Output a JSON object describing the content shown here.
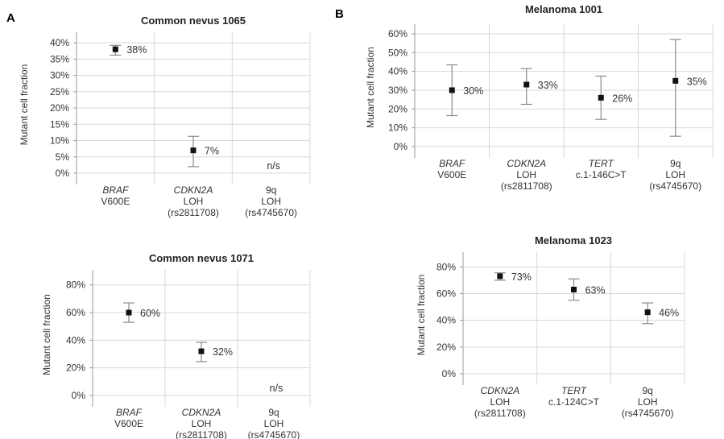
{
  "panel_labels": [
    "A",
    "B"
  ],
  "chart_data": [
    {
      "type": "scatter",
      "title": "Common nevus 1065",
      "ylabel": "Mutant cell fraction",
      "ylim": [
        0,
        0.42
      ],
      "yticks": [
        0,
        0.05,
        0.1,
        0.15,
        0.2,
        0.25,
        0.3,
        0.35,
        0.4
      ],
      "ytick_labels": [
        "0%",
        "5%",
        "10%",
        "15%",
        "20%",
        "25%",
        "30%",
        "35%",
        "40%"
      ],
      "categories": [
        {
          "lines": [
            "BRAF",
            "V600E"
          ],
          "italic_first": true
        },
        {
          "lines": [
            "CDKN2A",
            "LOH",
            "(rs2811708)"
          ],
          "italic_first": true
        },
        {
          "lines": [
            "9q",
            "LOH",
            "(rs4745670)"
          ],
          "italic_first": false
        }
      ],
      "points": [
        {
          "value": 0.38,
          "low": 0.362,
          "high": 0.392,
          "label": "38%"
        },
        {
          "value": 0.07,
          "low": 0.02,
          "high": 0.113,
          "label": "7%"
        },
        {
          "value": null,
          "low": null,
          "high": null,
          "label": "n/s"
        }
      ]
    },
    {
      "type": "scatter",
      "title": "Melanoma 1001",
      "ylabel": "Mutant cell fraction",
      "ylim": [
        0,
        0.63
      ],
      "yticks": [
        0,
        0.1,
        0.2,
        0.3,
        0.4,
        0.5,
        0.6
      ],
      "ytick_labels": [
        "0%",
        "10%",
        "20%",
        "30%",
        "40%",
        "50%",
        "60%"
      ],
      "categories": [
        {
          "lines": [
            "BRAF",
            "V600E"
          ],
          "italic_first": true
        },
        {
          "lines": [
            "CDKN2A",
            "LOH",
            "(rs2811708)"
          ],
          "italic_first": true
        },
        {
          "lines": [
            "TERT",
            "c.1-146C>T"
          ],
          "italic_first": true
        },
        {
          "lines": [
            "9q",
            "LOH",
            "(rs4745670)"
          ],
          "italic_first": false
        }
      ],
      "points": [
        {
          "value": 0.3,
          "low": 0.165,
          "high": 0.435,
          "label": "30%"
        },
        {
          "value": 0.33,
          "low": 0.225,
          "high": 0.415,
          "label": "33%"
        },
        {
          "value": 0.26,
          "low": 0.145,
          "high": 0.375,
          "label": "26%"
        },
        {
          "value": 0.35,
          "low": 0.055,
          "high": 0.57,
          "label": "35%"
        }
      ]
    },
    {
      "type": "scatter",
      "title": "Common nevus 1071",
      "ylabel": "Mutant cell fraction",
      "ylim": [
        0,
        0.88
      ],
      "yticks": [
        0,
        0.2,
        0.4,
        0.6,
        0.8
      ],
      "ytick_labels": [
        "0%",
        "20%",
        "40%",
        "60%",
        "80%"
      ],
      "categories": [
        {
          "lines": [
            "BRAF",
            "V600E"
          ],
          "italic_first": true
        },
        {
          "lines": [
            "CDKN2A",
            "LOH",
            "(rs2811708)"
          ],
          "italic_first": true
        },
        {
          "lines": [
            "9q",
            "LOH",
            "(rs4745670)"
          ],
          "italic_first": false
        }
      ],
      "points": [
        {
          "value": 0.6,
          "low": 0.53,
          "high": 0.67,
          "label": "60%"
        },
        {
          "value": 0.32,
          "low": 0.245,
          "high": 0.385,
          "label": "32%"
        },
        {
          "value": null,
          "low": null,
          "high": null,
          "label": "n/s"
        }
      ]
    },
    {
      "type": "scatter",
      "title": "Melanoma 1023",
      "ylabel": "Mutant cell fraction",
      "ylim": [
        0,
        0.88
      ],
      "yticks": [
        0,
        0.2,
        0.4,
        0.6,
        0.8
      ],
      "ytick_labels": [
        "0%",
        "20%",
        "40%",
        "60%",
        "80%"
      ],
      "categories": [
        {
          "lines": [
            "CDKN2A",
            "LOH",
            "(rs2811708)"
          ],
          "italic_first": true
        },
        {
          "lines": [
            "TERT",
            "c.1-124C>T"
          ],
          "italic_first": true
        },
        {
          "lines": [
            "9q",
            "LOH",
            "(rs4745670)"
          ],
          "italic_first": false
        }
      ],
      "points": [
        {
          "value": 0.73,
          "low": 0.7,
          "high": 0.755,
          "label": "73%"
        },
        {
          "value": 0.63,
          "low": 0.55,
          "high": 0.71,
          "label": "63%"
        },
        {
          "value": 0.46,
          "low": 0.375,
          "high": 0.53,
          "label": "46%"
        }
      ]
    }
  ]
}
